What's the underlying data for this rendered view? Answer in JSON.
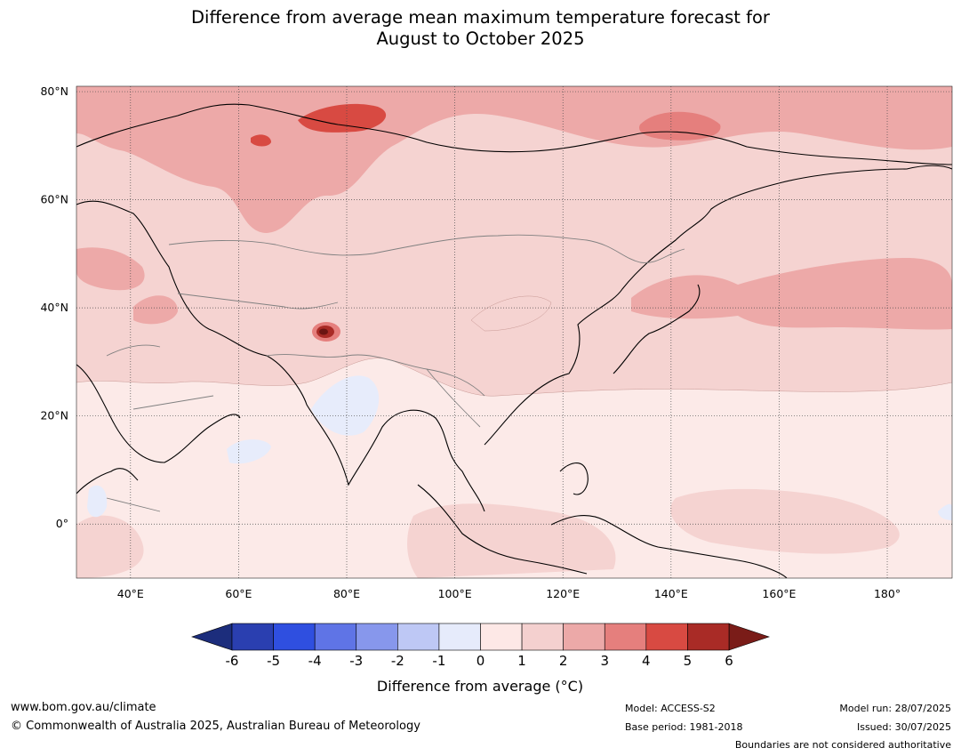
{
  "title_line1": "Difference from average mean maximum temperature forecast for",
  "title_line2": "August to October 2025",
  "map": {
    "lat_labels": [
      "80°N",
      "60°N",
      "40°N",
      "20°N",
      "0°"
    ],
    "lon_labels": [
      "40°E",
      "60°E",
      "80°E",
      "100°E",
      "120°E",
      "140°E",
      "160°E",
      "180°"
    ],
    "lat_range": [
      -10,
      81
    ],
    "lon_range": [
      30,
      192
    ],
    "label_values": {
      "lat": [
        80,
        60,
        40,
        20,
        0
      ],
      "lon": [
        40,
        60,
        80,
        100,
        120,
        140,
        160,
        180
      ]
    }
  },
  "colorbar": {
    "ticks": [
      "-6",
      "-5",
      "-4",
      "-3",
      "-2",
      "-1",
      "0",
      "1",
      "2",
      "3",
      "4",
      "5",
      "6"
    ],
    "colors": [
      "#2a3fb0",
      "#2f4fe0",
      "#5f74e6",
      "#8797ec",
      "#bec8f5",
      "#e6ebfb",
      "#fde8e6",
      "#f4d0cf",
      "#eca9a8",
      "#e57f7d",
      "#d84a42",
      "#a92b26"
    ],
    "min_extension_color": "#1c2d7c",
    "max_extension_color": "#7a1c18",
    "label": "Difference from average (°C)"
  },
  "footer": {
    "website": "www.bom.gov.au/climate",
    "copyright": "© Commonwealth of Australia 2025, Australian Bureau of Meteorology",
    "model": "Model: ACCESS-S2",
    "base_period": "Base period: 1981-2018",
    "model_run": "Model run: 28/07/2025",
    "issued": "Issued: 30/07/2025",
    "disclaimer": "Boundaries are not considered authoritative"
  }
}
